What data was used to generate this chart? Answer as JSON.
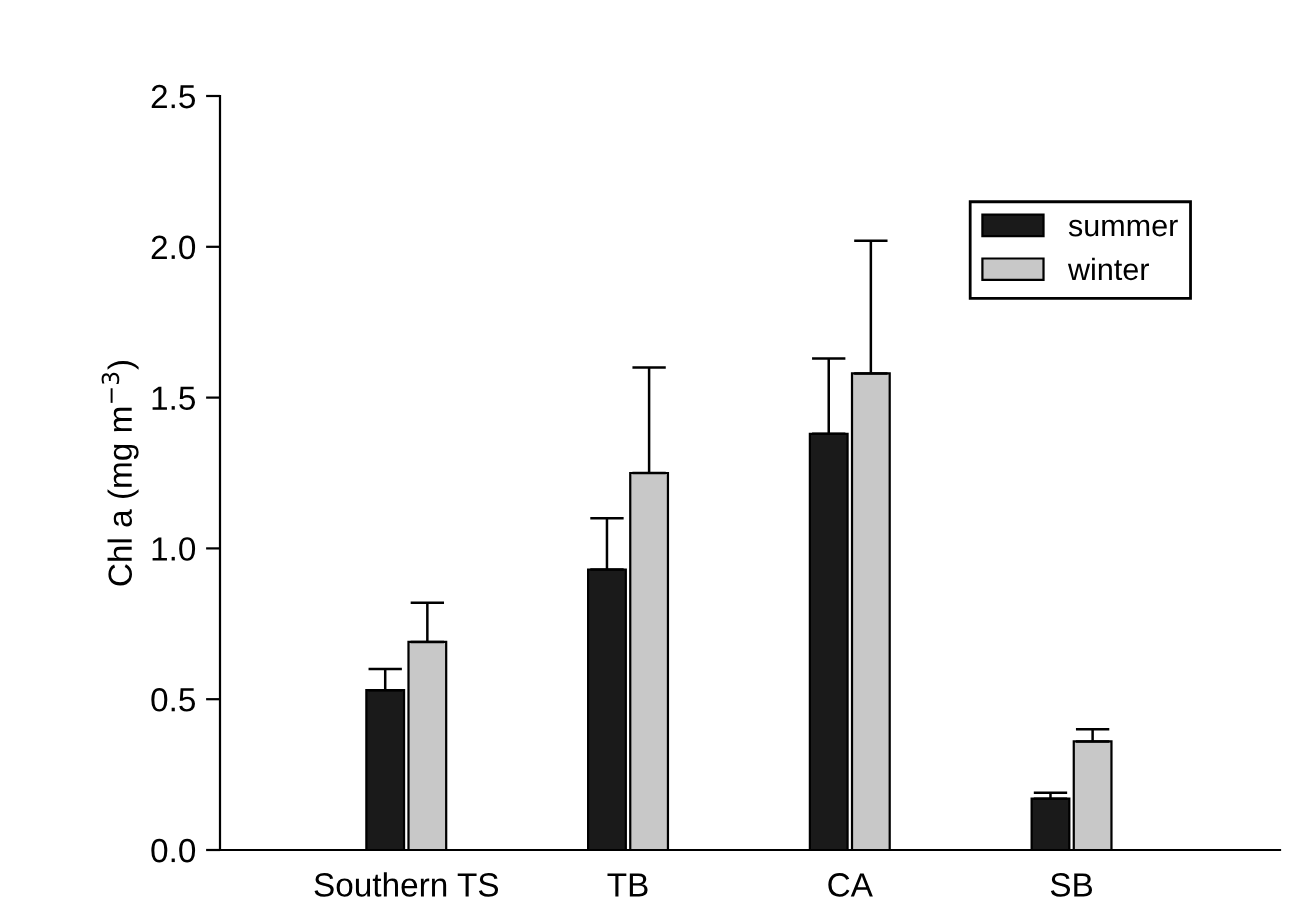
{
  "chart_data": {
    "type": "bar",
    "ylabel": "Chl a (mg m$^{−3}$)",
    "categories": [
      "Southern TS",
      "TB",
      "CA",
      "SB"
    ],
    "series": [
      {
        "name": "summer",
        "color": "#1a1a1a",
        "values": [
          0.53,
          0.93,
          1.38,
          0.17
        ],
        "errors": [
          [
            0.53,
            0.6
          ],
          [
            0.93,
            1.1
          ],
          [
            1.38,
            1.63
          ],
          [
            0.17,
            0.19
          ]
        ]
      },
      {
        "name": "winter",
        "color": "#c8c8c8",
        "values": [
          0.69,
          1.25,
          1.58,
          0.36
        ],
        "errors": [
          [
            0.69,
            0.82
          ],
          [
            1.25,
            1.6
          ],
          [
            1.58,
            2.02
          ],
          [
            0.36,
            0.4
          ]
        ]
      }
    ],
    "ylim": [
      0.0,
      2.5
    ],
    "yticks": [
      {
        "value": 0,
        "label": "0.0"
      },
      0.5,
      {
        "value": 1,
        "label": "1.0"
      },
      1.5,
      {
        "value": 2,
        "label": "2.0"
      },
      2.5
    ],
    "legend": "top right",
    "grid": false
  }
}
